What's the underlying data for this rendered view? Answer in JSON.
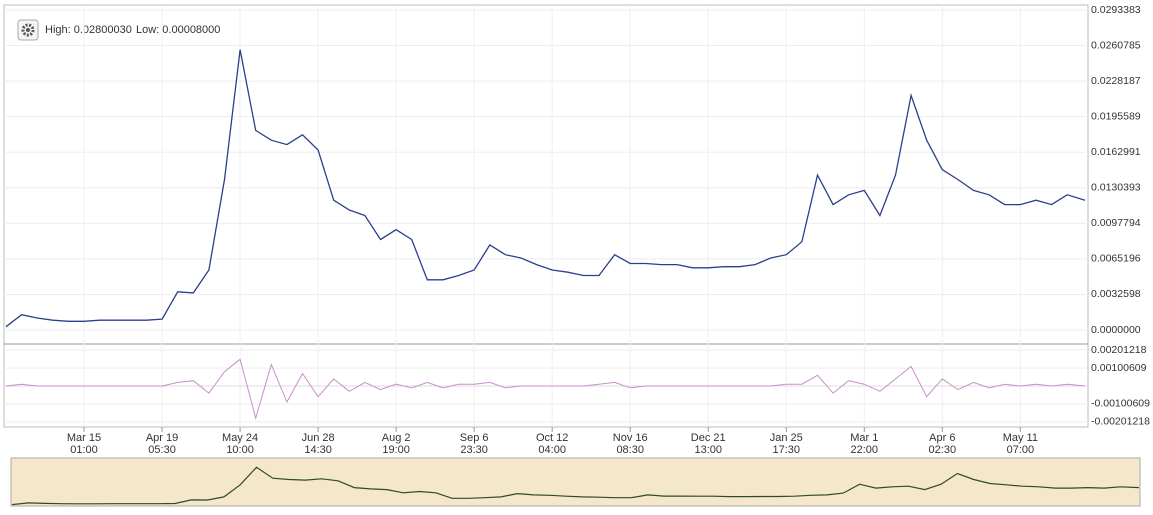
{
  "chart_data": {
    "type": "line",
    "high_label": "High: 0.02800030",
    "low_label": "Low: 0.00008000",
    "x": [
      0,
      7,
      14,
      21,
      28,
      35,
      42,
      49,
      56,
      63,
      70,
      77,
      84,
      91,
      98,
      105,
      112,
      119,
      126,
      133,
      140,
      147,
      154,
      161,
      168,
      175,
      182,
      189,
      196,
      203,
      210,
      217,
      224,
      231,
      238,
      245,
      252,
      259,
      266,
      273,
      280,
      287,
      294,
      301,
      308,
      315,
      322,
      329,
      336,
      343,
      350,
      357,
      364,
      371,
      378,
      385,
      392,
      399,
      406,
      413,
      420,
      427,
      434,
      441,
      448,
      455,
      462,
      469,
      476,
      484
    ],
    "xlim": [
      0,
      484
    ],
    "xticks": [
      {
        "value": 35,
        "date": "Mar 15",
        "time": "01:00"
      },
      {
        "value": 70,
        "date": "Apr 19",
        "time": "05:30"
      },
      {
        "value": 105,
        "date": "May 24",
        "time": "10:00"
      },
      {
        "value": 140,
        "date": "Jun 28",
        "time": "14:30"
      },
      {
        "value": 175,
        "date": "Aug 2",
        "time": "19:00"
      },
      {
        "value": 210,
        "date": "Sep 6",
        "time": "23:30"
      },
      {
        "value": 245,
        "date": "Oct 12",
        "time": "04:00"
      },
      {
        "value": 280,
        "date": "Nov 16",
        "time": "08:30"
      },
      {
        "value": 315,
        "date": "Dec 21",
        "time": "13:00"
      },
      {
        "value": 350,
        "date": "Jan 25",
        "time": "17:30"
      },
      {
        "value": 385,
        "date": "Mar 1",
        "time": "22:00"
      },
      {
        "value": 420,
        "date": "Apr 6",
        "time": "02:30"
      },
      {
        "value": 455,
        "date": "May 11",
        "time": "07:00"
      }
    ],
    "price": {
      "color": "#2b3f8c",
      "ylim": [
        0,
        0.0293383
      ],
      "yticks": [
        0.0293383,
        0.0260785,
        0.0228187,
        0.0195589,
        0.0162991,
        0.0130393,
        0.0097794,
        0.0065196,
        0.0032598,
        {
          "value": 0,
          "label": "0.0000000"
        }
      ],
      "values": [
        0.0003,
        0.0014,
        0.0011,
        0.0009,
        0.0008,
        0.0008,
        0.0009,
        0.0009,
        0.0009,
        0.0009,
        0.001,
        0.0035,
        0.0034,
        0.0055,
        0.0138,
        0.0257,
        0.0183,
        0.0174,
        0.017,
        0.0179,
        0.0165,
        0.0119,
        0.011,
        0.0105,
        0.0083,
        0.0092,
        0.0083,
        0.0046,
        0.0046,
        0.005,
        0.0055,
        0.0078,
        0.0069,
        0.0066,
        0.006,
        0.0055,
        0.0053,
        0.005,
        0.005,
        0.0069,
        0.0061,
        0.0061,
        0.006,
        0.006,
        0.0057,
        0.0057,
        0.0058,
        0.0058,
        0.006,
        0.0066,
        0.0069,
        0.0081,
        0.0142,
        0.0115,
        0.0124,
        0.0128,
        0.0105,
        0.0142,
        0.0215,
        0.0174,
        0.0147,
        0.0138,
        0.0128,
        0.0124,
        0.0115,
        0.0115,
        0.0119,
        0.0115,
        0.0124,
        0.0119
      ]
    },
    "oscillator": {
      "color": "#c98fcc",
      "ylim": [
        -0.0023,
        0.0023
      ],
      "yticks": [
        0.00201218,
        0.00100609,
        -0.00100609,
        -0.00201218
      ],
      "values": [
        0,
        0.0001,
        0,
        0,
        0,
        0,
        0,
        0,
        0,
        0,
        0,
        0.0002,
        0.0003,
        -0.0004,
        0.0008,
        0.0015,
        -0.0018,
        0.0012,
        -0.0009,
        0.0007,
        -0.0006,
        0.0004,
        -0.0003,
        0.0002,
        -0.0002,
        0.0001,
        -0.0001,
        0.0002,
        -0.0001,
        0.0001,
        0.0001,
        0.0002,
        -0.0001,
        0,
        0,
        0,
        0,
        0,
        0.0001,
        0.0002,
        -0.0001,
        0,
        0,
        0,
        0,
        0,
        0,
        0,
        0,
        0,
        0.0001,
        0.0001,
        0.0006,
        -0.0004,
        0.0003,
        0.0001,
        -0.0003,
        0.0004,
        0.0011,
        -0.0006,
        0.0004,
        -0.0002,
        0.0002,
        -0.0001,
        0.0001,
        0,
        0.0001,
        0,
        0.0001,
        0
      ]
    },
    "navigator_color": "#2f4a2a"
  }
}
